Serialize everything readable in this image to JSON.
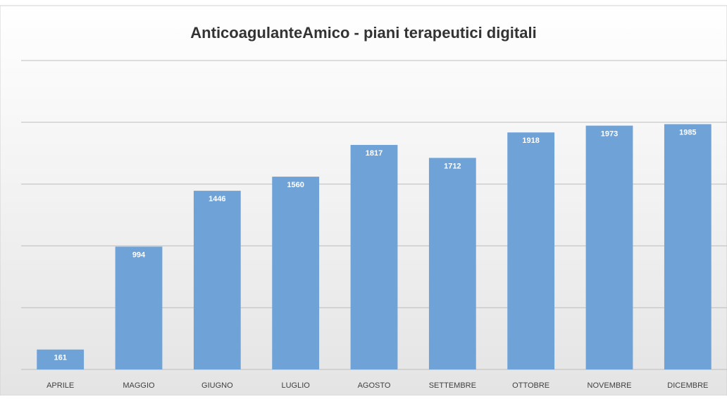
{
  "chart_data": {
    "type": "bar",
    "title": "AnticoagulanteAmico - piani terapeutici digitali",
    "categories": [
      "APRILE",
      "MAGGIO",
      "GIUGNO",
      "LUGLIO",
      "AGOSTO",
      "SETTEMBRE",
      "OTTOBRE",
      "NOVEMBRE",
      "DICEMBRE"
    ],
    "values": [
      161,
      994,
      1446,
      1560,
      1817,
      1712,
      1918,
      1973,
      1985
    ],
    "color": "#6fa3d8",
    "ylim": [
      0,
      2500
    ],
    "yticks": [
      0,
      500,
      1000,
      1500,
      2000,
      2500
    ],
    "grid": true
  }
}
